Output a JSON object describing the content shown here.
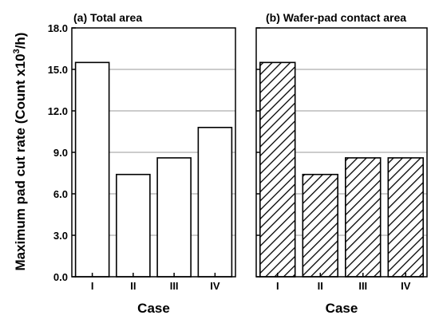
{
  "ylabel": {
    "main": "Maximum pad cut rate (Count x10",
    "superscript": "3",
    "tail": "/h)"
  },
  "chart_data": [
    {
      "type": "bar",
      "title": "(a) Total area",
      "xlabel": "Case",
      "categories": [
        "I",
        "II",
        "III",
        "IV"
      ],
      "values": [
        15.5,
        7.4,
        8.6,
        10.8
      ],
      "ylim": [
        0,
        18
      ],
      "yticks": [
        "0.0",
        "3.0",
        "6.0",
        "9.0",
        "12.0",
        "15.0",
        "18.0"
      ],
      "grid": true,
      "fill": "white"
    },
    {
      "type": "bar",
      "title": "(b) Wafer-pad contact area",
      "xlabel": "Case",
      "categories": [
        "I",
        "II",
        "III",
        "IV"
      ],
      "values": [
        15.5,
        7.4,
        8.6,
        8.6
      ],
      "ylim": [
        0,
        18
      ],
      "yticks": [],
      "grid": true,
      "fill": "hatched"
    }
  ]
}
